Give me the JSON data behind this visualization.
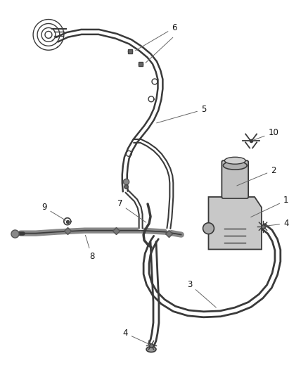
{
  "background_color": "#ffffff",
  "fig_width": 4.38,
  "fig_height": 5.33,
  "dpi": 100,
  "line_color": "#3a3a3a",
  "label_fontsize": 8.5
}
